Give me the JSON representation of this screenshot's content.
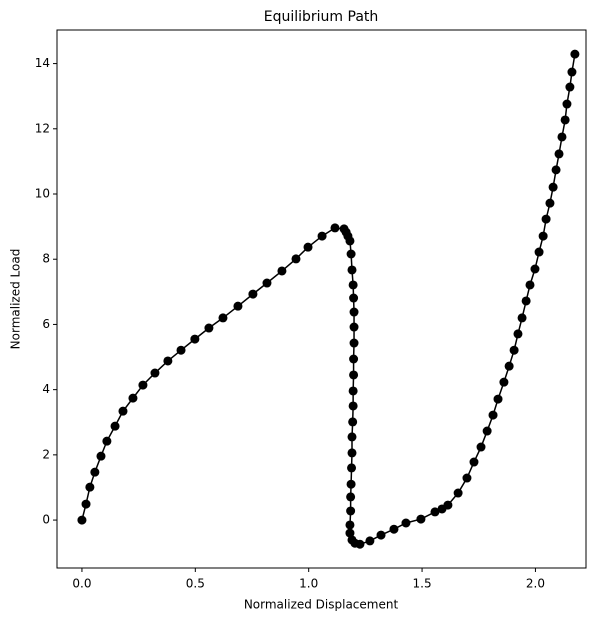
{
  "chart_data": {
    "type": "line",
    "title": "Equilibrium Path",
    "x_label": "Normalized Displacement",
    "y_label": "Normalized Load",
    "color": "#000000",
    "x": [
      0,
      0.018,
      0.035,
      0.057,
      0.084,
      0.11,
      0.146,
      0.181,
      0.225,
      0.269,
      0.322,
      0.379,
      0.437,
      0.498,
      0.56,
      0.622,
      0.688,
      0.754,
      0.816,
      0.882,
      0.944,
      0.997,
      1.059,
      1.116,
      1.156,
      1.165,
      1.173,
      1.182,
      1.187,
      1.191,
      1.196,
      1.198,
      1.2,
      1.2,
      1.2,
      1.198,
      1.198,
      1.196,
      1.196,
      1.194,
      1.191,
      1.191,
      1.189,
      1.187,
      1.185,
      1.185,
      1.182,
      1.182,
      1.191,
      1.204,
      1.226,
      1.27,
      1.319,
      1.376,
      1.429,
      1.495,
      1.557,
      1.588,
      1.614,
      1.659,
      1.698,
      1.729,
      1.76,
      1.787,
      1.813,
      1.835,
      1.861,
      1.884,
      1.906,
      1.923,
      1.941,
      1.959,
      1.976,
      1.998,
      2.016,
      2.034,
      2.047,
      2.064,
      2.078,
      2.091,
      2.104,
      2.117,
      2.131,
      2.139,
      2.152,
      2.161,
      2.174
    ],
    "values": [
      0,
      0.49,
      1.01,
      1.47,
      1.96,
      2.42,
      2.88,
      3.34,
      3.74,
      4.14,
      4.51,
      4.88,
      5.21,
      5.55,
      5.89,
      6.2,
      6.56,
      6.93,
      7.27,
      7.64,
      8.01,
      8.37,
      8.71,
      8.96,
      8.93,
      8.83,
      8.71,
      8.56,
      8.16,
      7.67,
      7.21,
      6.81,
      6.38,
      5.92,
      5.43,
      4.94,
      4.45,
      3.96,
      3.5,
      3.01,
      2.55,
      2.06,
      1.6,
      1.1,
      0.71,
      0.28,
      -0.15,
      -0.4,
      -0.61,
      -0.71,
      -0.74,
      -0.64,
      -0.46,
      -0.28,
      -0.09,
      0.03,
      0.25,
      0.34,
      0.46,
      0.83,
      1.29,
      1.78,
      2.24,
      2.73,
      3.22,
      3.71,
      4.23,
      4.72,
      5.21,
      5.71,
      6.2,
      6.72,
      7.21,
      7.7,
      8.22,
      8.71,
      9.23,
      9.72,
      10.21,
      10.74,
      11.23,
      11.75,
      12.27,
      12.76,
      13.28,
      13.74,
      14.29
    ],
    "xlim": [
      -0.11,
      2.223
    ],
    "ylim": [
      -1.47,
      15.03
    ],
    "xticks": [
      {
        "value": 0,
        "label": "0.0"
      },
      {
        "value": 0.5,
        "label": "0.5"
      },
      {
        "value": 1,
        "label": "1.0"
      },
      {
        "value": 1.5,
        "label": "1.5"
      },
      {
        "value": 2,
        "label": "2.0"
      }
    ],
    "yticks": [
      0,
      2,
      4,
      6,
      8,
      10,
      12,
      14
    ],
    "grid": false
  }
}
